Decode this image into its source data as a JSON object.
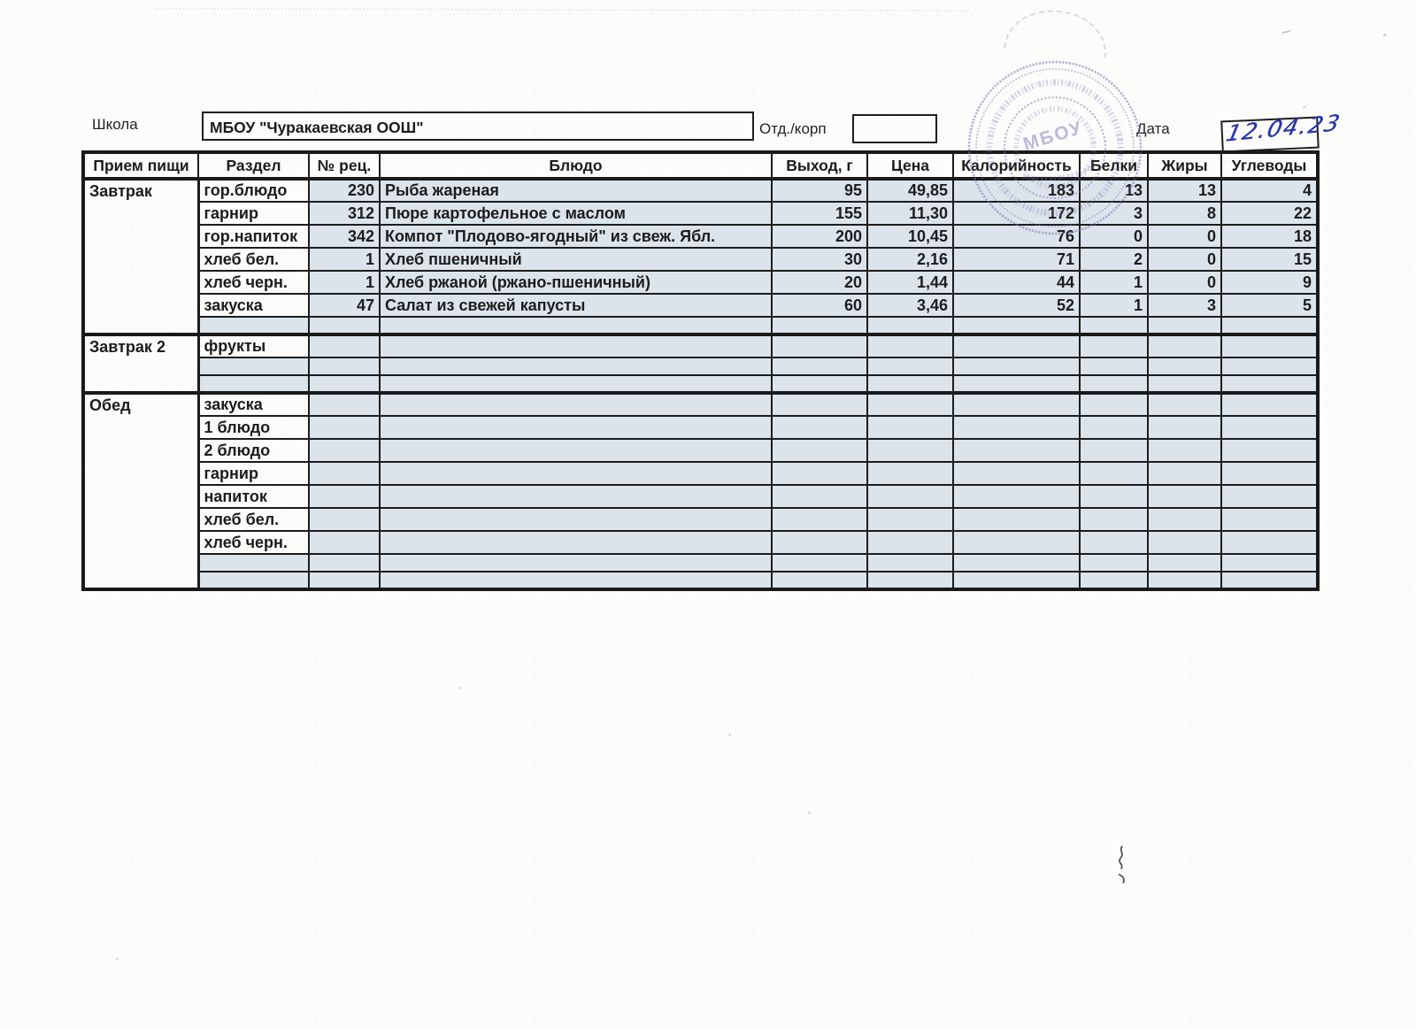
{
  "header": {
    "school_label": "Школа",
    "school_name": "МБОУ \"Чуракаевская ООШ\"",
    "dept_label": "Отд./корп",
    "dept_value": "",
    "date_label": "Дата",
    "date_value": "12.04.23"
  },
  "stamp": {
    "center_text": "МБОУ",
    "color": "#7a6fb5"
  },
  "colors": {
    "cell_fill": "#dce4eb",
    "handwriting_ink": "#2936ad",
    "stamp_purple": "#7a6fb5",
    "border_ink": "#1a1a1a"
  },
  "table": {
    "headers": [
      "Прием пищи",
      "Раздел",
      "№ рец.",
      "Блюдо",
      "Выход, г",
      "Цена",
      "Калорийность",
      "Белки",
      "Жиры",
      "Углеводы"
    ],
    "sections": [
      {
        "meal": "Завтрак",
        "rows": [
          {
            "razdel": "гор.блюдо",
            "rec": "230",
            "dish": "Рыба жареная",
            "out": "95",
            "price": "49,85",
            "kcal": "183",
            "protein": "13",
            "fat": "13",
            "carbs": "4"
          },
          {
            "razdel": "гарнир",
            "rec": "312",
            "dish": "Пюре картофельное с маслом",
            "out": "155",
            "price": "11,30",
            "kcal": "172",
            "protein": "3",
            "fat": "8",
            "carbs": "22"
          },
          {
            "razdel": "гор.напиток",
            "rec": "342",
            "dish": "Компот \"Плодово-ягодный\" из свеж. Ябл.",
            "out": "200",
            "price": "10,45",
            "kcal": "76",
            "protein": "0",
            "fat": "0",
            "carbs": "18"
          },
          {
            "razdel": "хлеб бел.",
            "rec": "1",
            "dish": "Хлеб пшеничный",
            "out": "30",
            "price": "2,16",
            "kcal": "71",
            "protein": "2",
            "fat": "0",
            "carbs": "15"
          },
          {
            "razdel": "хлеб черн.",
            "rec": "1",
            "dish": "Хлеб ржаной (ржано-пшеничный)",
            "out": "20",
            "price": "1,44",
            "kcal": "44",
            "protein": "1",
            "fat": "0",
            "carbs": "9"
          },
          {
            "razdel": "закуска",
            "rec": "47",
            "dish": "Салат из свежей капусты",
            "out": "60",
            "price": "3,46",
            "kcal": "52",
            "protein": "1",
            "fat": "3",
            "carbs": "5"
          },
          {
            "razdel": "",
            "rec": "",
            "dish": "",
            "out": "",
            "price": "",
            "kcal": "",
            "protein": "",
            "fat": "",
            "carbs": "",
            "short": true
          }
        ]
      },
      {
        "meal": "Завтрак 2",
        "rows": [
          {
            "razdel": "фрукты",
            "rec": "",
            "dish": "",
            "out": "",
            "price": "",
            "kcal": "",
            "protein": "",
            "fat": "",
            "carbs": ""
          },
          {
            "razdel": "",
            "rec": "",
            "dish": "",
            "out": "",
            "price": "",
            "kcal": "",
            "protein": "",
            "fat": "",
            "carbs": "",
            "short": true
          },
          {
            "razdel": "",
            "rec": "",
            "dish": "",
            "out": "",
            "price": "",
            "kcal": "",
            "protein": "",
            "fat": "",
            "carbs": "",
            "short": true
          }
        ]
      },
      {
        "meal": "Обед",
        "rows": [
          {
            "razdel": "закуска",
            "rec": "",
            "dish": "",
            "out": "",
            "price": "",
            "kcal": "",
            "protein": "",
            "fat": "",
            "carbs": ""
          },
          {
            "razdel": "1 блюдо",
            "rec": "",
            "dish": "",
            "out": "",
            "price": "",
            "kcal": "",
            "protein": "",
            "fat": "",
            "carbs": ""
          },
          {
            "razdel": "2 блюдо",
            "rec": "",
            "dish": "",
            "out": "",
            "price": "",
            "kcal": "",
            "protein": "",
            "fat": "",
            "carbs": ""
          },
          {
            "razdel": "гарнир",
            "rec": "",
            "dish": "",
            "out": "",
            "price": "",
            "kcal": "",
            "protein": "",
            "fat": "",
            "carbs": ""
          },
          {
            "razdel": "напиток",
            "rec": "",
            "dish": "",
            "out": "",
            "price": "",
            "kcal": "",
            "protein": "",
            "fat": "",
            "carbs": ""
          },
          {
            "razdel": "хлеб бел.",
            "rec": "",
            "dish": "",
            "out": "",
            "price": "",
            "kcal": "",
            "protein": "",
            "fat": "",
            "carbs": ""
          },
          {
            "razdel": "хлеб черн.",
            "rec": "",
            "dish": "",
            "out": "",
            "price": "",
            "kcal": "",
            "protein": "",
            "fat": "",
            "carbs": ""
          },
          {
            "razdel": "",
            "rec": "",
            "dish": "",
            "out": "",
            "price": "",
            "kcal": "",
            "protein": "",
            "fat": "",
            "carbs": "",
            "short": true
          },
          {
            "razdel": "",
            "rec": "",
            "dish": "",
            "out": "",
            "price": "",
            "kcal": "",
            "protein": "",
            "fat": "",
            "carbs": "",
            "short": true
          }
        ]
      }
    ]
  }
}
